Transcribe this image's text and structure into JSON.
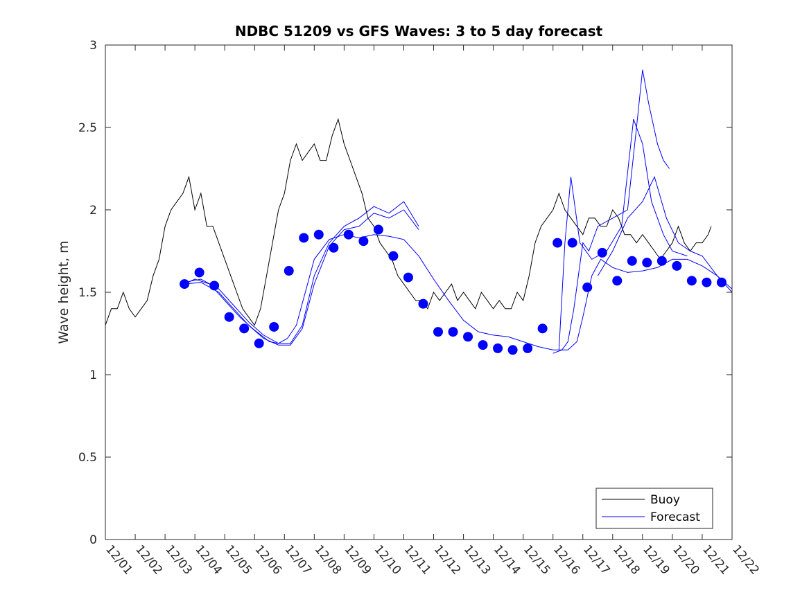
{
  "chart_data": {
    "type": "line",
    "title": "NDBC 51209 vs GFS Waves: 3 to 5 day forecast",
    "xlabel": "",
    "ylabel": "Wave height, m",
    "xlim": [
      0,
      21
    ],
    "ylim": [
      0,
      3
    ],
    "x_tick_labels": [
      "12/01",
      "12/02",
      "12/03",
      "12/04",
      "12/05",
      "12/06",
      "12/07",
      "12/08",
      "12/09",
      "12/10",
      "12/11",
      "12/12",
      "12/13",
      "12/14",
      "12/15",
      "12/16",
      "12/17",
      "12/18",
      "12/19",
      "12/20",
      "12/21",
      "12/22"
    ],
    "y_ticks": [
      0,
      0.5,
      1,
      1.5,
      2,
      2.5,
      3
    ],
    "y_tick_labels": [
      "0",
      "0.5",
      "1",
      "1.5",
      "2",
      "2.5",
      "3"
    ],
    "grid": false,
    "legend": {
      "placement": "bottom-right",
      "entries": [
        "Buoy",
        "Forecast"
      ]
    },
    "colors": {
      "buoy": "#000000",
      "forecast": "#0000ff",
      "points": "#0000ff"
    },
    "series": [
      {
        "name": "Buoy",
        "x": [
          0,
          0.2,
          0.4,
          0.6,
          0.8,
          1.0,
          1.2,
          1.4,
          1.6,
          1.8,
          2.0,
          2.2,
          2.4,
          2.6,
          2.8,
          3.0,
          3.2,
          3.4,
          3.6,
          3.8,
          4.0,
          4.2,
          4.4,
          4.6,
          4.8,
          5.0,
          5.2,
          5.4,
          5.6,
          5.8,
          6.0,
          6.2,
          6.4,
          6.6,
          6.8,
          7.0,
          7.2,
          7.4,
          7.6,
          7.8,
          8.0,
          8.2,
          8.4,
          8.6,
          8.8,
          9.0,
          9.2,
          9.4,
          9.6,
          9.8,
          10.0,
          10.2,
          10.4,
          10.6,
          10.8,
          11.0,
          11.2,
          11.4,
          11.6,
          11.8,
          12.0,
          12.2,
          12.4,
          12.6,
          12.8,
          13.0,
          13.2,
          13.4,
          13.6,
          13.8,
          14.0,
          14.2,
          14.4,
          14.6,
          14.8,
          15.0,
          15.2,
          15.4,
          15.6,
          15.8,
          16.0,
          16.2,
          16.4,
          16.6,
          16.8,
          17.0,
          17.2,
          17.4,
          17.6,
          17.8,
          18.0,
          18.2,
          18.4,
          18.6,
          18.8,
          19.0,
          19.2,
          19.4,
          19.6,
          19.8,
          20.0,
          20.2,
          20.3
        ],
        "values": [
          1.3,
          1.4,
          1.4,
          1.5,
          1.4,
          1.35,
          1.4,
          1.45,
          1.6,
          1.7,
          1.9,
          2.0,
          2.05,
          2.1,
          2.2,
          2.0,
          2.1,
          1.9,
          1.9,
          1.8,
          1.7,
          1.6,
          1.5,
          1.4,
          1.35,
          1.3,
          1.4,
          1.6,
          1.8,
          2.0,
          2.1,
          2.3,
          2.4,
          2.3,
          2.35,
          2.4,
          2.3,
          2.3,
          2.45,
          2.55,
          2.4,
          2.3,
          2.2,
          2.1,
          1.95,
          1.9,
          1.8,
          1.75,
          1.7,
          1.6,
          1.55,
          1.5,
          1.45,
          1.45,
          1.4,
          1.5,
          1.45,
          1.5,
          1.55,
          1.45,
          1.5,
          1.45,
          1.4,
          1.5,
          1.45,
          1.4,
          1.45,
          1.4,
          1.4,
          1.5,
          1.45,
          1.6,
          1.8,
          1.9,
          1.95,
          2.0,
          2.1,
          2.0,
          1.95,
          1.9,
          1.85,
          1.95,
          1.95,
          1.9,
          1.9,
          2.0,
          1.95,
          1.85,
          1.85,
          1.8,
          1.85,
          1.8,
          1.75,
          1.7,
          1.75,
          1.8,
          1.9,
          1.8,
          1.75,
          1.8,
          1.8,
          1.85,
          1.9
        ]
      },
      {
        "name": "Forecast",
        "x": [
          2.65,
          3.0,
          3.5,
          4.0,
          4.5,
          5.0,
          5.5,
          5.8,
          6.1,
          6.4,
          6.7,
          7.0,
          7.5,
          8.0,
          8.5,
          9.0,
          9.5,
          10.0,
          10.5,
          11.0,
          11.5,
          12.0,
          12.5,
          13.0,
          13.5,
          14.0,
          14.5,
          15.0,
          15.5,
          15.8,
          16.0,
          16.3,
          16.6,
          17.0,
          17.5,
          18.0,
          18.5,
          19.0,
          19.5,
          20.0,
          20.5,
          21.0
        ],
        "values": [
          1.55,
          1.58,
          1.55,
          1.45,
          1.35,
          1.27,
          1.2,
          1.19,
          1.22,
          1.3,
          1.5,
          1.7,
          1.82,
          1.85,
          1.83,
          1.85,
          1.84,
          1.82,
          1.72,
          1.58,
          1.45,
          1.33,
          1.26,
          1.24,
          1.23,
          1.2,
          1.17,
          1.15,
          1.15,
          1.2,
          1.35,
          1.6,
          1.7,
          1.65,
          1.62,
          1.63,
          1.65,
          1.7,
          1.7,
          1.66,
          1.6,
          1.52
        ]
      },
      {
        "name": "Forecast",
        "x": [
          2.65,
          3.2,
          3.8,
          4.3,
          4.8,
          5.3,
          5.8,
          6.2,
          6.6,
          7.0,
          7.5,
          8.0,
          8.5,
          9.0,
          9.5,
          10.0,
          10.5
        ],
        "values": [
          1.56,
          1.58,
          1.52,
          1.42,
          1.32,
          1.24,
          1.19,
          1.19,
          1.3,
          1.6,
          1.8,
          1.9,
          1.95,
          2.02,
          1.98,
          2.05,
          1.9
        ]
      },
      {
        "name": "Forecast",
        "x": [
          2.65,
          3.2,
          3.8,
          4.3,
          4.8,
          5.3,
          5.8,
          6.2,
          6.6,
          7.0,
          7.5,
          8.0,
          8.5,
          9.0,
          9.5,
          10.0,
          10.5
        ],
        "values": [
          1.55,
          1.56,
          1.5,
          1.4,
          1.3,
          1.22,
          1.18,
          1.18,
          1.28,
          1.55,
          1.78,
          1.88,
          1.9,
          1.98,
          1.95,
          2.0,
          1.88
        ]
      },
      {
        "name": "Forecast",
        "x": [
          15.0,
          15.3,
          15.5,
          15.7,
          16.0,
          16.2,
          16.5,
          17.0,
          17.5,
          17.8,
          18.0,
          18.2,
          18.5,
          18.7,
          18.9
        ],
        "values": [
          1.13,
          1.15,
          1.2,
          1.4,
          1.8,
          1.75,
          1.9,
          1.95,
          2.0,
          2.5,
          2.85,
          2.65,
          2.4,
          2.3,
          2.25
        ]
      },
      {
        "name": "Forecast",
        "x": [
          15.2,
          15.4,
          15.6,
          15.9,
          16.3,
          16.8,
          17.3,
          17.7,
          18.0,
          18.3,
          18.7,
          19.0,
          19.5
        ],
        "values": [
          1.15,
          1.8,
          2.2,
          1.8,
          1.7,
          1.75,
          1.9,
          2.55,
          2.4,
          2.05,
          1.85,
          1.75,
          1.72
        ]
      },
      {
        "name": "Forecast",
        "x": [
          16.5,
          17.0,
          17.5,
          18.0,
          18.4,
          18.8,
          19.2,
          19.6,
          20.0,
          20.5,
          21.0
        ],
        "values": [
          1.6,
          1.75,
          1.95,
          2.05,
          2.2,
          1.95,
          1.8,
          1.75,
          1.72,
          1.6,
          1.5
        ]
      },
      {
        "name": "Forecast points",
        "x": [
          2.65,
          3.15,
          3.65,
          4.15,
          4.65,
          5.15,
          5.65,
          6.15,
          6.65,
          7.15,
          7.65,
          8.15,
          8.65,
          9.15,
          9.65,
          10.15,
          10.65,
          11.15,
          11.65,
          12.15,
          12.65,
          13.15,
          13.65,
          14.15,
          14.65,
          15.15,
          15.65,
          16.15,
          16.65,
          17.15,
          17.65,
          18.15,
          18.65,
          19.15,
          19.65,
          20.15,
          20.65
        ],
        "values": [
          1.55,
          1.62,
          1.54,
          1.35,
          1.28,
          1.19,
          1.29,
          1.63,
          1.83,
          1.85,
          1.77,
          1.85,
          1.81,
          1.88,
          1.72,
          1.59,
          1.43,
          1.26,
          1.26,
          1.23,
          1.18,
          1.16,
          1.15,
          1.16,
          1.28,
          1.8,
          1.8,
          1.53,
          1.74,
          1.57,
          1.69,
          1.68,
          1.69,
          1.66,
          1.57,
          1.56,
          1.56
        ]
      }
    ]
  }
}
